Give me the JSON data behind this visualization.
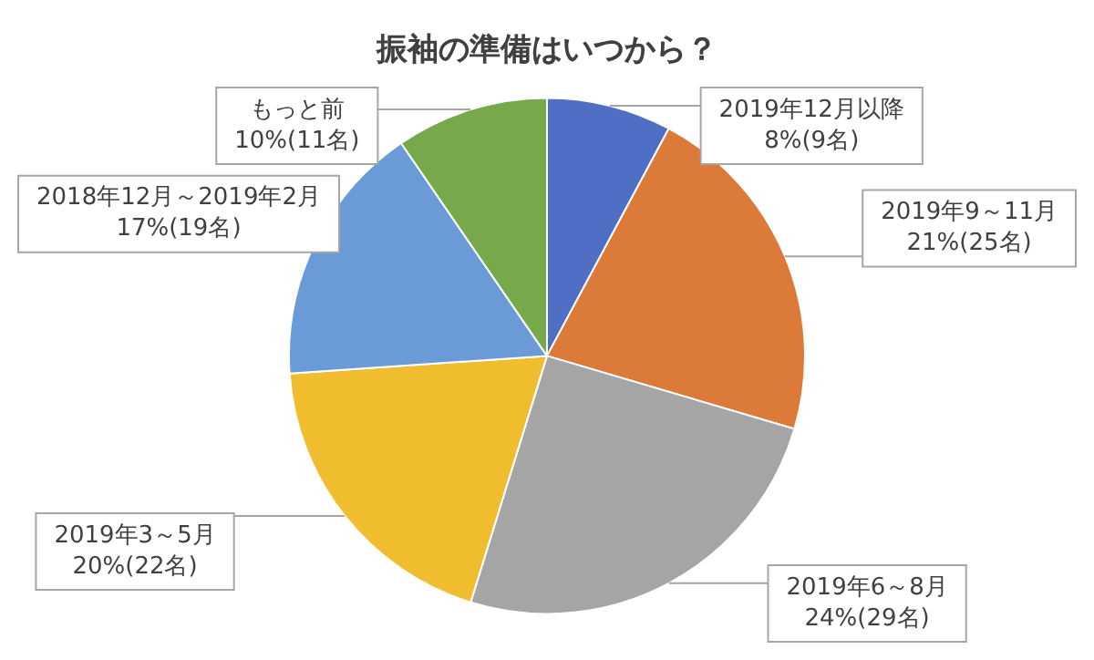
{
  "chart_data": {
    "type": "pie",
    "title": "振袖の準備はいつから？",
    "categories": [
      "2019年12月以降",
      "2019年9～11月",
      "2019年6～8月",
      "2019年3～5月",
      "2018年12月～2019年2月",
      "もっと前"
    ],
    "values": [
      9,
      25,
      29,
      22,
      19,
      11
    ],
    "value_labels": [
      "8%(9名)",
      "21%(25名)",
      "24%(29名)",
      "20%(22名)",
      "17%(19名)",
      "10%(11名)"
    ],
    "colors": [
      "#4f6fc4",
      "#dc7a3a",
      "#a5a5a5",
      "#f0bd2e",
      "#6b9bd6",
      "#77a84a"
    ],
    "legend": false
  }
}
